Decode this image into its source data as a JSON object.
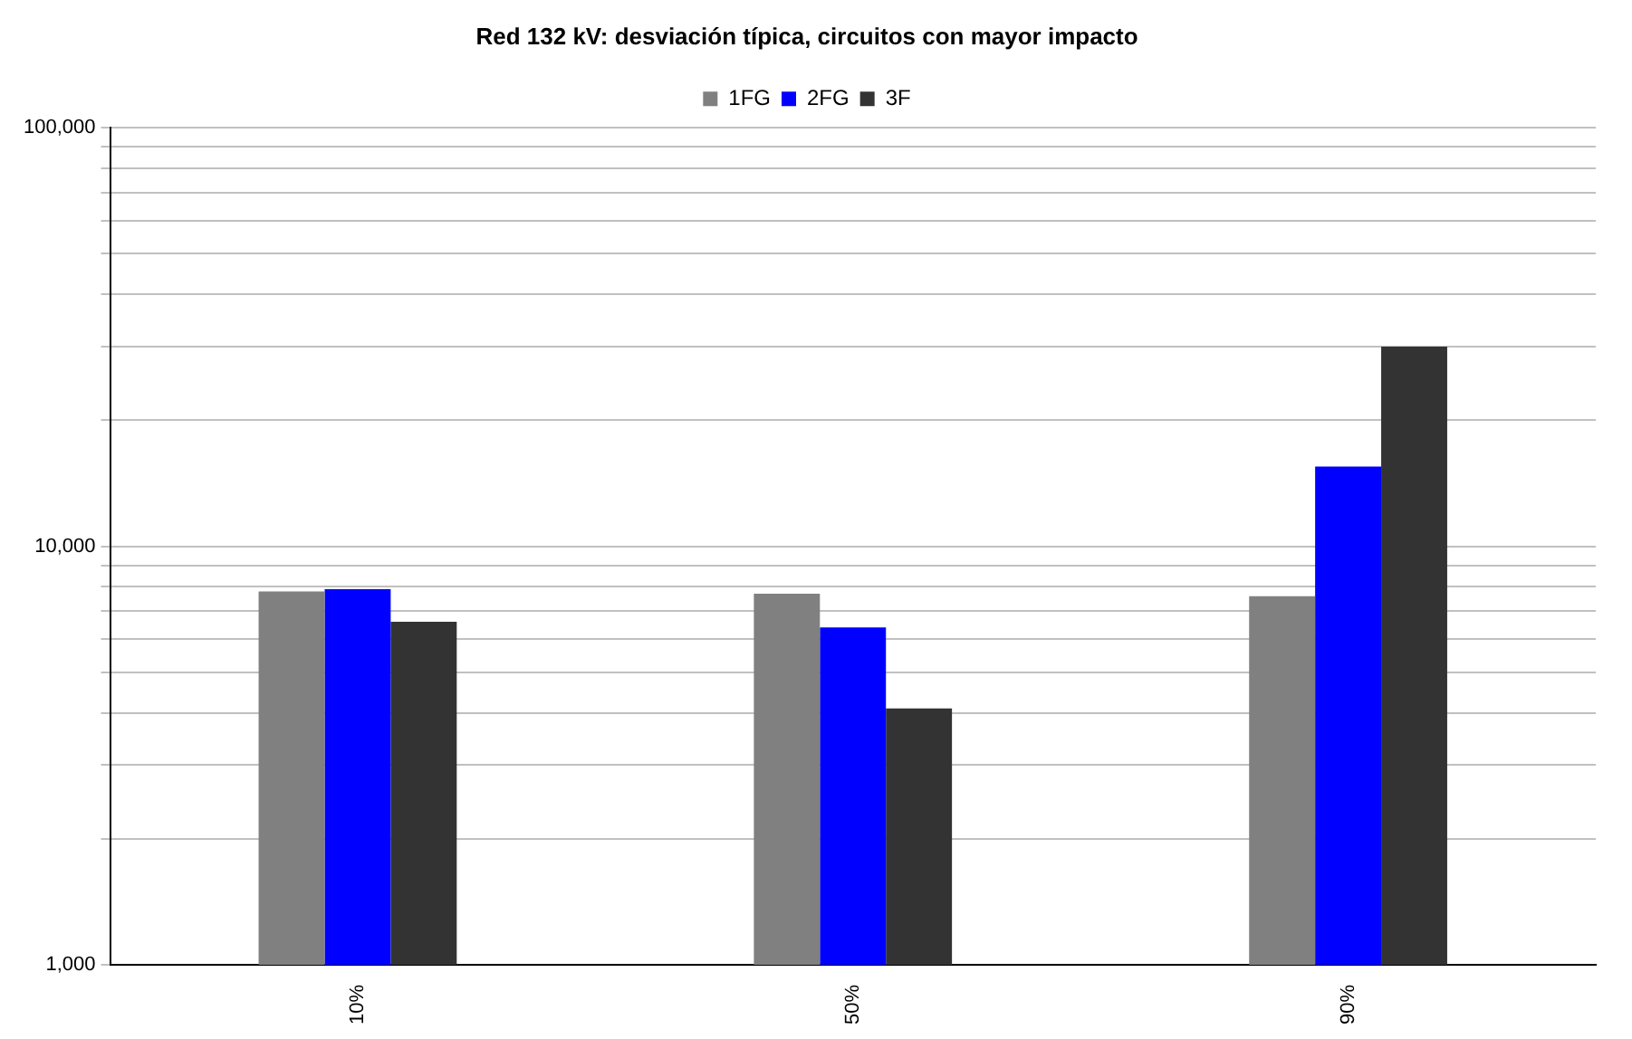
{
  "chart_data": {
    "type": "bar",
    "title": "Red 132 kV: desviación típica, circuitos con mayor impacto",
    "categories": [
      "10%",
      "50%",
      "90%"
    ],
    "series": [
      {
        "name": "1FG",
        "color": "#808080",
        "values": [
          7800,
          7700,
          7600
        ]
      },
      {
        "name": "2FG",
        "color": "#0000ff",
        "values": [
          7900,
          6400,
          15500
        ]
      },
      {
        "name": "3F",
        "color": "#333333",
        "values": [
          6600,
          4100,
          30000
        ]
      }
    ],
    "log": "y",
    "ylim": [
      1000,
      100000
    ],
    "yticks": [
      {
        "value": 1000,
        "label": "1,000"
      },
      {
        "value": 2000,
        "label": null
      },
      {
        "value": 3000,
        "label": null
      },
      {
        "value": 4000,
        "label": null
      },
      {
        "value": 5000,
        "label": null
      },
      {
        "value": 6000,
        "label": null
      },
      {
        "value": 7000,
        "label": null
      },
      {
        "value": 8000,
        "label": null
      },
      {
        "value": 9000,
        "label": null
      },
      {
        "value": 10000,
        "label": "10,000"
      },
      {
        "value": 20000,
        "label": null
      },
      {
        "value": 30000,
        "label": null
      },
      {
        "value": 40000,
        "label": null
      },
      {
        "value": 50000,
        "label": null
      },
      {
        "value": 60000,
        "label": null
      },
      {
        "value": 70000,
        "label": null
      },
      {
        "value": 80000,
        "label": null
      },
      {
        "value": 90000,
        "label": null
      },
      {
        "value": 100000,
        "label": "100,000"
      }
    ],
    "grid": "y",
    "legend": "top"
  }
}
